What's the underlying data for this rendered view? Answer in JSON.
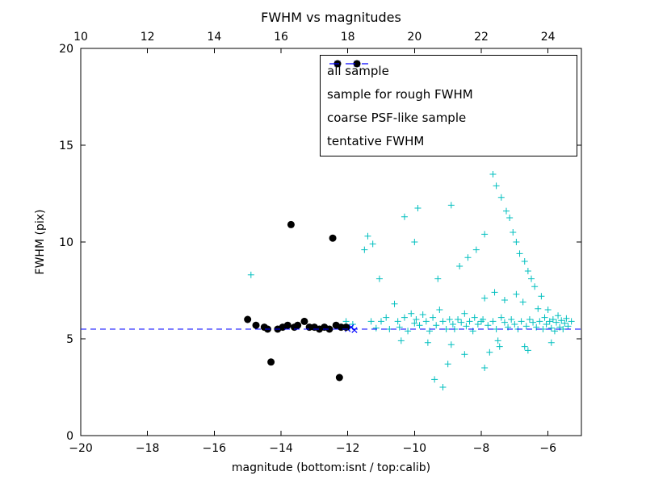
{
  "chart_data": {
    "type": "scatter",
    "title": "FWHM vs magnitudes",
    "xlabel": "magnitude (bottom:isnt / top:calib)",
    "ylabel": "FWHM (pix)",
    "x_axis_bottom": {
      "ticks": [
        -20,
        -18,
        -16,
        -14,
        -12,
        -10,
        -8,
        -6
      ],
      "range": [
        -20,
        -5
      ]
    },
    "x_axis_top": {
      "ticks": [
        10,
        12,
        14,
        16,
        18,
        20,
        22,
        24
      ],
      "range": [
        10,
        25
      ]
    },
    "y_axis": {
      "ticks": [
        0,
        5,
        10,
        15,
        20
      ],
      "range": [
        0,
        20
      ]
    },
    "grid": false,
    "legend_position": "upper right",
    "tentative_fwhm": 5.5,
    "colors": {
      "all_sample": "#00bfbf",
      "rough_fwhm_sample": "#0000ff",
      "psf_like_sample": "#000000",
      "tentative_line": "#0000ff",
      "axes": "#000000",
      "background": "#ffffff"
    },
    "series": [
      {
        "name": "all sample",
        "marker": "plus",
        "color": "#00bfbf",
        "points": [
          [
            -14.9,
            8.3
          ],
          [
            -12.05,
            5.9
          ],
          [
            -11.95,
            5.6
          ],
          [
            -11.85,
            5.75
          ],
          [
            -11.5,
            9.6
          ],
          [
            -11.4,
            10.3
          ],
          [
            -11.25,
            9.9
          ],
          [
            -11.3,
            5.9
          ],
          [
            -11.15,
            5.55
          ],
          [
            -11.05,
            8.1
          ],
          [
            -11.0,
            5.9
          ],
          [
            -10.85,
            6.1
          ],
          [
            -10.75,
            5.5
          ],
          [
            -10.6,
            6.8
          ],
          [
            -10.5,
            5.9
          ],
          [
            -10.45,
            5.6
          ],
          [
            -10.4,
            4.9
          ],
          [
            -10.3,
            11.3
          ],
          [
            -10.3,
            6.1
          ],
          [
            -10.2,
            5.4
          ],
          [
            -10.1,
            6.3
          ],
          [
            -10.0,
            10.0
          ],
          [
            -10.0,
            5.8
          ],
          [
            -9.95,
            6.0
          ],
          [
            -9.9,
            11.75
          ],
          [
            -9.85,
            5.7
          ],
          [
            -9.75,
            6.25
          ],
          [
            -9.65,
            5.9
          ],
          [
            -9.6,
            4.8
          ],
          [
            -9.55,
            5.4
          ],
          [
            -9.45,
            6.1
          ],
          [
            -9.4,
            2.9
          ],
          [
            -9.35,
            5.7
          ],
          [
            -9.3,
            8.1
          ],
          [
            -9.25,
            6.5
          ],
          [
            -9.15,
            5.9
          ],
          [
            -9.15,
            2.5
          ],
          [
            -9.05,
            5.5
          ],
          [
            -9.0,
            3.7
          ],
          [
            -8.95,
            6.0
          ],
          [
            -8.9,
            11.9
          ],
          [
            -8.9,
            4.7
          ],
          [
            -8.85,
            5.75
          ],
          [
            -8.8,
            5.5
          ],
          [
            -8.7,
            6.0
          ],
          [
            -8.65,
            8.75
          ],
          [
            -8.6,
            5.85
          ],
          [
            -8.5,
            6.3
          ],
          [
            -8.5,
            4.2
          ],
          [
            -8.45,
            5.65
          ],
          [
            -8.4,
            9.2
          ],
          [
            -8.35,
            5.9
          ],
          [
            -8.25,
            5.4
          ],
          [
            -8.2,
            6.1
          ],
          [
            -8.15,
            9.6
          ],
          [
            -8.1,
            5.75
          ],
          [
            -8.0,
            5.9
          ],
          [
            -7.95,
            6.0
          ],
          [
            -7.9,
            10.4
          ],
          [
            -7.9,
            7.1
          ],
          [
            -7.9,
            3.5
          ],
          [
            -7.8,
            5.7
          ],
          [
            -7.75,
            4.3
          ],
          [
            -7.65,
            13.5
          ],
          [
            -7.65,
            5.9
          ],
          [
            -7.6,
            7.4
          ],
          [
            -7.55,
            12.9
          ],
          [
            -7.55,
            5.5
          ],
          [
            -7.5,
            4.9
          ],
          [
            -7.45,
            4.6
          ],
          [
            -7.4,
            12.3
          ],
          [
            -7.4,
            6.1
          ],
          [
            -7.3,
            7.0
          ],
          [
            -7.3,
            5.85
          ],
          [
            -7.25,
            11.6
          ],
          [
            -7.2,
            5.6
          ],
          [
            -7.15,
            11.25
          ],
          [
            -7.1,
            6.0
          ],
          [
            -7.05,
            10.5
          ],
          [
            -7.0,
            5.75
          ],
          [
            -6.95,
            10.0
          ],
          [
            -6.95,
            7.3
          ],
          [
            -6.9,
            5.5
          ],
          [
            -6.85,
            9.4
          ],
          [
            -6.8,
            5.9
          ],
          [
            -6.75,
            6.9
          ],
          [
            -6.7,
            9.0
          ],
          [
            -6.7,
            4.6
          ],
          [
            -6.65,
            5.65
          ],
          [
            -6.6,
            8.5
          ],
          [
            -6.6,
            4.4
          ],
          [
            -6.55,
            6.0
          ],
          [
            -6.5,
            8.1
          ],
          [
            -6.45,
            5.85
          ],
          [
            -6.4,
            7.7
          ],
          [
            -6.35,
            5.6
          ],
          [
            -6.3,
            6.55
          ],
          [
            -6.25,
            5.9
          ],
          [
            -6.2,
            7.2
          ],
          [
            -6.15,
            5.5
          ],
          [
            -6.1,
            6.1
          ],
          [
            -6.05,
            5.75
          ],
          [
            -6.0,
            6.5
          ],
          [
            -5.95,
            5.9
          ],
          [
            -5.9,
            5.55
          ],
          [
            -5.9,
            4.8
          ],
          [
            -5.85,
            6.0
          ],
          [
            -5.8,
            5.4
          ],
          [
            -5.75,
            5.85
          ],
          [
            -5.7,
            6.2
          ],
          [
            -5.65,
            5.6
          ],
          [
            -5.6,
            5.95
          ],
          [
            -5.55,
            5.5
          ],
          [
            -5.5,
            5.8
          ],
          [
            -5.45,
            6.05
          ],
          [
            -5.4,
            5.65
          ],
          [
            -5.3,
            5.9
          ]
        ]
      },
      {
        "name": "sample for rough FWHM",
        "marker": "x",
        "color": "#0000ff",
        "points": [
          [
            -12.0,
            5.5
          ],
          [
            -11.9,
            5.6
          ],
          [
            -11.8,
            5.45
          ]
        ]
      },
      {
        "name": "coarse PSF-like sample",
        "marker": "circle",
        "color": "#000000",
        "points": [
          [
            -15.0,
            6.0
          ],
          [
            -14.75,
            5.7
          ],
          [
            -14.5,
            5.6
          ],
          [
            -14.4,
            5.5
          ],
          [
            -14.3,
            3.8
          ],
          [
            -14.1,
            5.5
          ],
          [
            -13.95,
            5.6
          ],
          [
            -13.8,
            5.7
          ],
          [
            -13.7,
            10.9
          ],
          [
            -13.6,
            5.6
          ],
          [
            -13.5,
            5.7
          ],
          [
            -13.3,
            5.9
          ],
          [
            -13.15,
            5.6
          ],
          [
            -13.0,
            5.6
          ],
          [
            -12.85,
            5.5
          ],
          [
            -12.7,
            5.6
          ],
          [
            -12.55,
            5.5
          ],
          [
            -12.45,
            10.2
          ],
          [
            -12.35,
            5.7
          ],
          [
            -12.25,
            3.0
          ],
          [
            -12.2,
            5.6
          ],
          [
            -12.05,
            5.6
          ]
        ]
      },
      {
        "name": "tentative FWHM",
        "marker": "dashed-line",
        "color": "#0000ff",
        "y": 5.5
      }
    ]
  }
}
